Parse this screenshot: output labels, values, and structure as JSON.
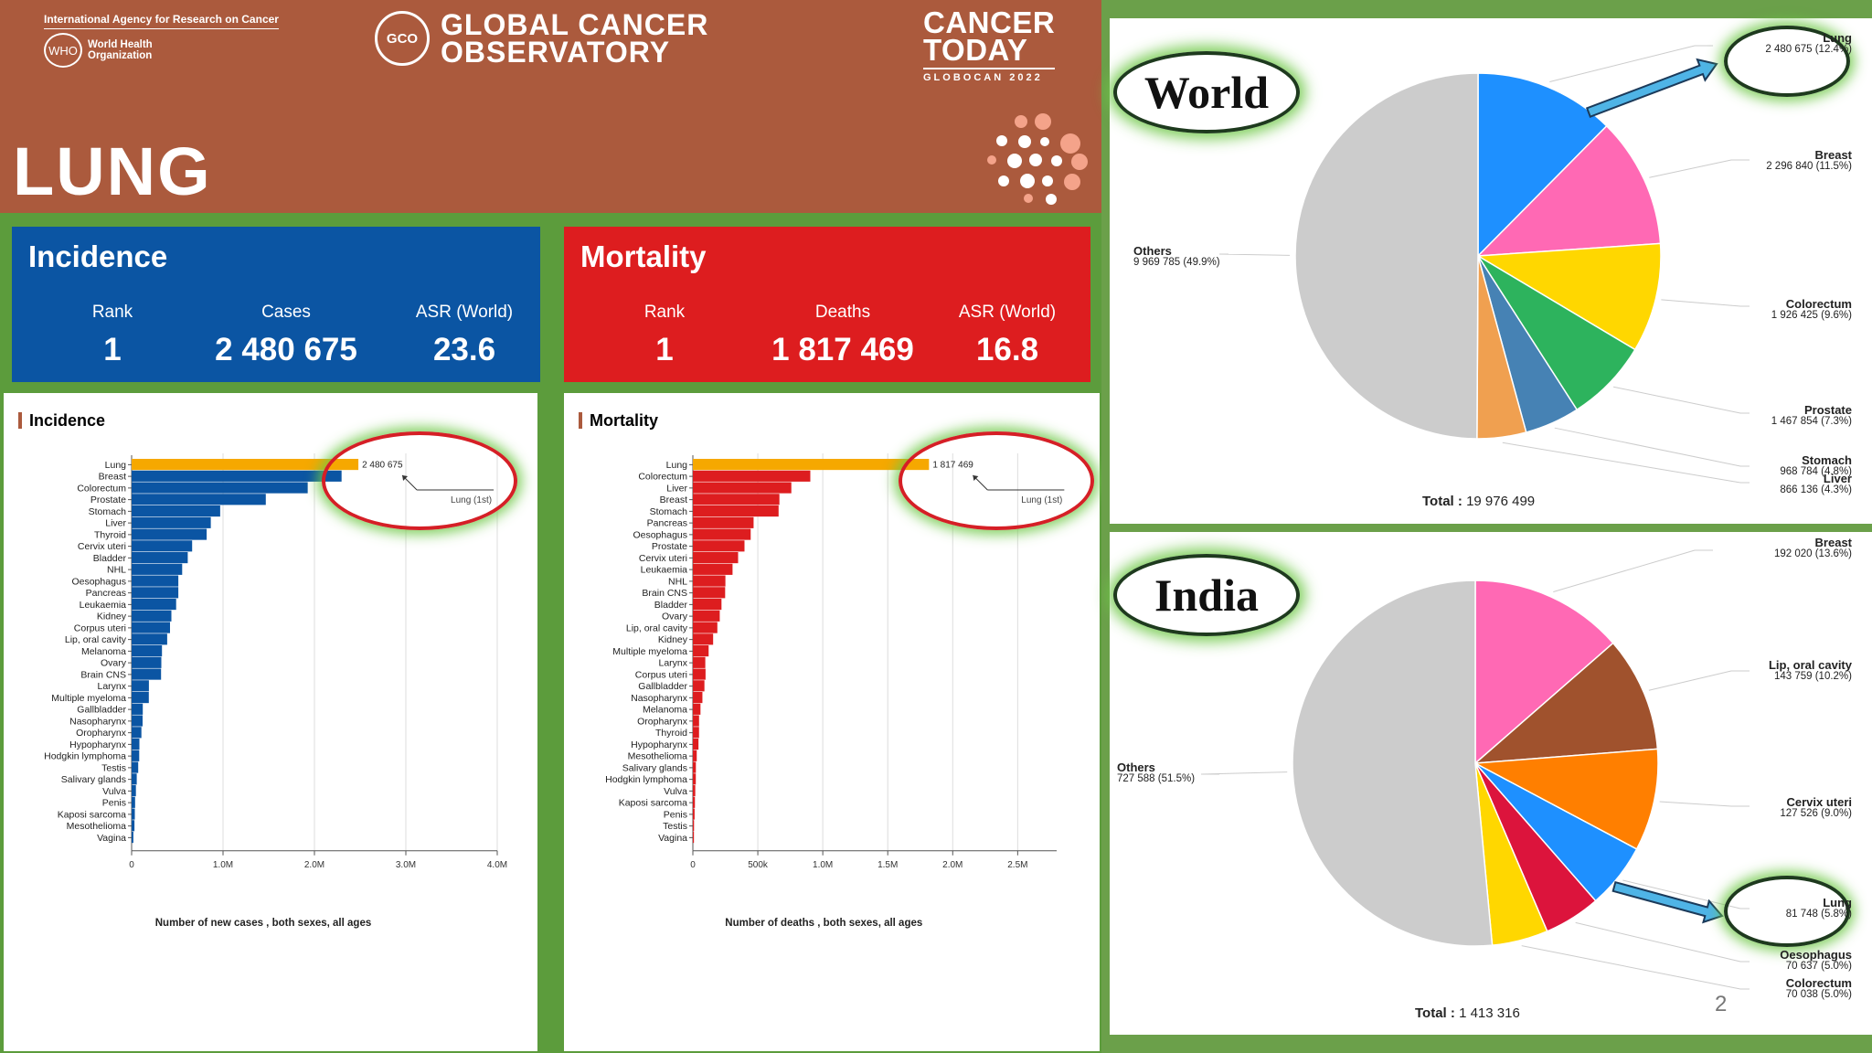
{
  "header": {
    "agency": "International Agency for Research on Cancer",
    "who": "World Health Organization",
    "who_logo_text": "WHO",
    "gco_logo_text": "GCO",
    "observatory_line1": "GLOBAL CANCER",
    "observatory_line2": "OBSERVATORY",
    "today_line1": "CANCER",
    "today_line2": "TODAY",
    "globocan": "GLOBOCAN 2022",
    "cancer_site": "LUNG"
  },
  "incidence_box": {
    "title": "Incidence",
    "rank_label": "Rank",
    "rank": "1",
    "cases_label": "Cases",
    "cases": "2 480 675",
    "asr_label": "ASR (World)",
    "asr": "23.6"
  },
  "mortality_box": {
    "title": "Mortality",
    "rank_label": "Rank",
    "rank": "1",
    "deaths_label": "Deaths",
    "deaths": "1 817 469",
    "asr_label": "ASR (World)",
    "asr": "16.8"
  },
  "colors": {
    "header_bg": "#ab5a3d",
    "incidence_blue": "#0b55a3",
    "mortality_red": "#dd1d1f",
    "highlight": "#f6a800",
    "ring": "#d51f26",
    "glow": "#6ec846"
  },
  "chart_data": [
    {
      "type": "bar",
      "orientation": "horizontal",
      "title": "Incidence",
      "xlabel": "Number of new cases , both sexes, all ages",
      "xlim": [
        0,
        4000000
      ],
      "xticks": [
        0,
        1000000,
        2000000,
        3000000,
        4000000
      ],
      "xtick_labels": [
        "0",
        "1.0M",
        "2.0M",
        "3.0M",
        "4.0M"
      ],
      "highlight_label": "2 480 675",
      "annotation": "Lung (1st)",
      "categories": [
        "Lung",
        "Breast",
        "Colorectum",
        "Prostate",
        "Stomach",
        "Liver",
        "Thyroid",
        "Cervix uteri",
        "Bladder",
        "NHL",
        "Oesophagus",
        "Pancreas",
        "Leukaemia",
        "Kidney",
        "Corpus uteri",
        "Lip, oral cavity",
        "Melanoma",
        "Ovary",
        "Brain CNS",
        "Larynx",
        "Multiple myeloma",
        "Gallbladder",
        "Nasopharynx",
        "Oropharynx",
        "Hypopharynx",
        "Hodgkin lymphoma",
        "Testis",
        "Salivary glands",
        "Vulva",
        "Penis",
        "Kaposi sarcoma",
        "Mesothelioma",
        "Vagina"
      ],
      "values": [
        2480675,
        2296840,
        1926425,
        1467854,
        968784,
        866136,
        821000,
        662000,
        614000,
        553000,
        511000,
        511000,
        487000,
        435000,
        420000,
        389000,
        332000,
        325000,
        322000,
        189000,
        188000,
        122000,
        120000,
        107000,
        85000,
        83000,
        72000,
        56000,
        47000,
        38000,
        35000,
        31000,
        19000
      ],
      "highlight_color": "#f6a800",
      "bar_color": "#0b55a3"
    },
    {
      "type": "bar",
      "orientation": "horizontal",
      "title": "Mortality",
      "xlabel": "Number of deaths , both sexes, all ages",
      "xlim": [
        0,
        2800000
      ],
      "xticks": [
        0,
        500000,
        1000000,
        1500000,
        2000000,
        2500000
      ],
      "xtick_labels": [
        "0",
        "500k",
        "1.0M",
        "1.5M",
        "2.0M",
        "2.5M"
      ],
      "highlight_label": "1 817 469",
      "annotation": "Lung (1st)",
      "categories": [
        "Lung",
        "Colorectum",
        "Liver",
        "Breast",
        "Stomach",
        "Pancreas",
        "Oesophagus",
        "Prostate",
        "Cervix uteri",
        "Leukaemia",
        "NHL",
        "Brain CNS",
        "Bladder",
        "Ovary",
        "Lip, oral cavity",
        "Kidney",
        "Multiple myeloma",
        "Larynx",
        "Corpus uteri",
        "Gallbladder",
        "Nasopharynx",
        "Melanoma",
        "Oropharynx",
        "Thyroid",
        "Hypopharynx",
        "Mesothelioma",
        "Salivary glands",
        "Hodgkin lymphoma",
        "Vulva",
        "Kaposi sarcoma",
        "Penis",
        "Testis",
        "Vagina"
      ],
      "values": [
        1817469,
        904019,
        757948,
        666103,
        659853,
        467409,
        445129,
        397430,
        348189,
        305405,
        250475,
        248500,
        220349,
        206956,
        188438,
        155953,
        121388,
        95766,
        97704,
        89055,
        73482,
        58667,
        47722,
        47507,
        43214,
        29896,
        23215,
        22733,
        18579,
        15880,
        13371,
        9056,
        8300
      ],
      "highlight_color": "#f6a800",
      "bar_color": "#dd1d1f"
    },
    {
      "type": "pie",
      "title": "World",
      "total_label": "Total :",
      "total": "19 976 499",
      "slices": [
        {
          "name": "Lung",
          "value": 2480675,
          "label": "2 480 675 (12.4%)",
          "color": "#1e90ff"
        },
        {
          "name": "Breast",
          "value": 2296840,
          "label": "2 296 840 (11.5%)",
          "color": "#ff69b4"
        },
        {
          "name": "Colorectum",
          "value": 1926425,
          "label": "1 926 425 (9.6%)",
          "color": "#ffd700"
        },
        {
          "name": "Prostate",
          "value": 1467854,
          "label": "1 467 854 (7.3%)",
          "color": "#2db35d"
        },
        {
          "name": "Stomach",
          "value": 968784,
          "label": "968 784 (4.8%)",
          "color": "#4682b4"
        },
        {
          "name": "Liver",
          "value": 866136,
          "label": "866 136 (4.3%)",
          "color": "#f0a050"
        },
        {
          "name": "Others",
          "value": 9969785,
          "label": "9 969 785 (49.9%)",
          "color": "#cccccc"
        }
      ]
    },
    {
      "type": "pie",
      "title": "India",
      "total_label": "Total :",
      "total": "1 413 316",
      "slices": [
        {
          "name": "Breast",
          "value": 192020,
          "label": "192 020 (13.6%)",
          "color": "#ff69b4"
        },
        {
          "name": "Lip, oral cavity",
          "value": 143759,
          "label": "143 759 (10.2%)",
          "color": "#a0522d"
        },
        {
          "name": "Cervix uteri",
          "value": 127526,
          "label": "127 526 (9.0%)",
          "color": "#ff7f00"
        },
        {
          "name": "Lung",
          "value": 81748,
          "label": "81 748 (5.8%)",
          "color": "#1e90ff"
        },
        {
          "name": "Oesophagus",
          "value": 70637,
          "label": "70 637 (5.0%)",
          "color": "#dc143c"
        },
        {
          "name": "Colorectum",
          "value": 70038,
          "label": "70 038 (5.0%)",
          "color": "#ffd700"
        },
        {
          "name": "Others",
          "value": 727588,
          "label": "727 588 (51.5%)",
          "color": "#cccccc"
        }
      ]
    }
  ],
  "page_number": "2"
}
